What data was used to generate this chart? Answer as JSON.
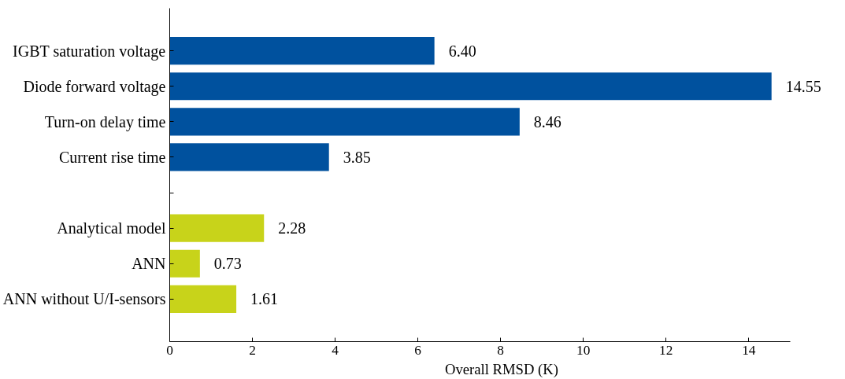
{
  "chart_data": {
    "type": "bar",
    "orientation": "horizontal",
    "xlabel": "Overall RMSD (K)",
    "categories": [
      "IGBT saturation voltage",
      "Diode forward voltage",
      "Turn-on delay time",
      "Current rise time",
      null,
      "Analytical model",
      "ANN",
      "ANN without U/I-sensors"
    ],
    "values": [
      6.4,
      14.55,
      8.46,
      3.85,
      null,
      2.28,
      0.73,
      1.61
    ],
    "colors": [
      "#00519e",
      "#00519e",
      "#00519e",
      "#00519e",
      null,
      "#c8d31a",
      "#c8d31a",
      "#c8d31a"
    ],
    "value_labels": [
      "6.40",
      "14.55",
      "8.46",
      "3.85",
      null,
      "2.28",
      "0.73",
      "1.61"
    ],
    "xlim": [
      0,
      15
    ],
    "xticks": [
      0,
      2,
      4,
      6,
      8,
      10,
      12,
      14
    ],
    "grid": false
  }
}
